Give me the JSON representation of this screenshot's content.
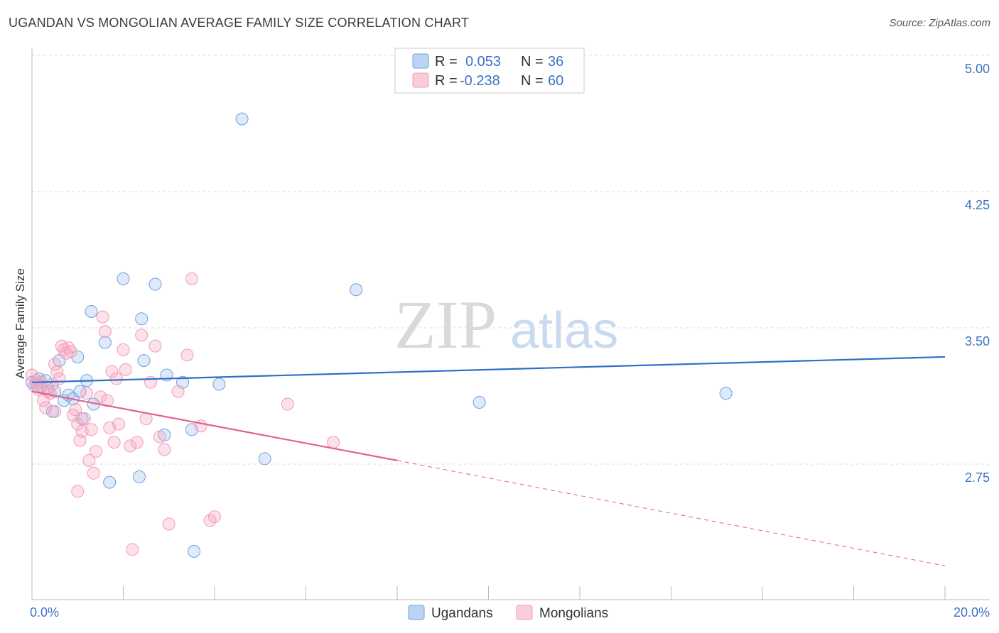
{
  "header": {
    "title": "UGANDAN VS MONGOLIAN AVERAGE FAMILY SIZE CORRELATION CHART",
    "source": "Source: ZipAtlas.com"
  },
  "watermark": {
    "zip": "ZIP",
    "atlas": "atlas"
  },
  "chart_data": {
    "type": "scatter",
    "title": "UGANDAN VS MONGOLIAN AVERAGE FAMILY SIZE CORRELATION CHART",
    "ylabel": "Average Family Size",
    "xlabel": "",
    "xlim": [
      0,
      20
    ],
    "ylim": [
      2.0,
      5.1
    ],
    "y_ticks": [
      5.0,
      4.25,
      3.5,
      2.75
    ],
    "y_tick_labels": [
      "5.00",
      "4.25",
      "3.50",
      "2.75"
    ],
    "x_tick_labels": {
      "min": "0.0%",
      "max": "20.0%"
    },
    "grid": true,
    "legend": {
      "position": "top-center",
      "entries": [
        {
          "r_label": "R =",
          "r_value": "0.053",
          "n_label": "N =",
          "n_value": "36"
        },
        {
          "r_label": "R =",
          "r_value": "-0.238",
          "n_label": "N =",
          "n_value": "60"
        }
      ]
    },
    "series": [
      {
        "name": "Ugandans",
        "color": "#6fa0e0",
        "line_color": "#2f6fc7",
        "trend": {
          "x0": 0,
          "y0": 3.2,
          "x1": 20,
          "y1": 3.34
        },
        "points": [
          [
            0.0,
            3.2
          ],
          [
            0.1,
            3.19
          ],
          [
            0.15,
            3.22
          ],
          [
            0.2,
            3.18
          ],
          [
            0.3,
            3.21
          ],
          [
            0.35,
            3.17
          ],
          [
            0.45,
            3.04
          ],
          [
            0.5,
            3.15
          ],
          [
            0.6,
            3.32
          ],
          [
            0.7,
            3.1
          ],
          [
            0.8,
            3.13
          ],
          [
            0.9,
            3.11
          ],
          [
            1.0,
            3.34
          ],
          [
            1.05,
            3.15
          ],
          [
            1.1,
            3.0
          ],
          [
            1.2,
            3.21
          ],
          [
            1.3,
            3.59
          ],
          [
            1.35,
            3.08
          ],
          [
            1.6,
            3.42
          ],
          [
            1.7,
            2.65
          ],
          [
            2.0,
            3.77
          ],
          [
            2.35,
            2.68
          ],
          [
            2.4,
            3.55
          ],
          [
            2.45,
            3.32
          ],
          [
            2.7,
            3.74
          ],
          [
            2.9,
            2.91
          ],
          [
            2.95,
            3.24
          ],
          [
            3.3,
            3.2
          ],
          [
            3.5,
            2.94
          ],
          [
            3.55,
            2.27
          ],
          [
            4.1,
            3.19
          ],
          [
            4.6,
            4.65
          ],
          [
            5.1,
            2.78
          ],
          [
            7.1,
            3.71
          ],
          [
            9.8,
            3.09
          ],
          [
            15.2,
            3.14
          ]
        ]
      },
      {
        "name": "Mongolians",
        "color": "#f29bb8",
        "line_color": "#e0628e",
        "trend": {
          "x0": 0,
          "y0": 3.15,
          "x1": 8.0,
          "y1": 2.77
        },
        "trend_dashed": {
          "x0": 8.0,
          "y0": 2.77,
          "x1": 20,
          "y1": 2.19
        },
        "points": [
          [
            0.0,
            3.24
          ],
          [
            0.05,
            3.18
          ],
          [
            0.1,
            3.21
          ],
          [
            0.15,
            3.16
          ],
          [
            0.2,
            3.2
          ],
          [
            0.25,
            3.1
          ],
          [
            0.3,
            3.06
          ],
          [
            0.35,
            3.15
          ],
          [
            0.4,
            3.14
          ],
          [
            0.45,
            3.19
          ],
          [
            0.5,
            3.04
          ],
          [
            0.55,
            3.26
          ],
          [
            0.6,
            3.22
          ],
          [
            0.65,
            3.4
          ],
          [
            0.7,
            3.38
          ],
          [
            0.75,
            3.36
          ],
          [
            0.8,
            3.39
          ],
          [
            0.85,
            3.37
          ],
          [
            0.9,
            3.02
          ],
          [
            0.95,
            3.05
          ],
          [
            1.0,
            2.97
          ],
          [
            1.05,
            2.88
          ],
          [
            1.1,
            2.93
          ],
          [
            1.15,
            3.0
          ],
          [
            1.2,
            3.14
          ],
          [
            1.25,
            2.77
          ],
          [
            1.3,
            2.94
          ],
          [
            1.35,
            2.7
          ],
          [
            1.4,
            2.82
          ],
          [
            1.5,
            3.12
          ],
          [
            1.55,
            3.56
          ],
          [
            1.6,
            3.48
          ],
          [
            1.65,
            3.1
          ],
          [
            1.7,
            2.95
          ],
          [
            1.75,
            3.26
          ],
          [
            1.8,
            2.87
          ],
          [
            1.85,
            3.22
          ],
          [
            1.9,
            2.97
          ],
          [
            2.0,
            3.38
          ],
          [
            2.05,
            3.27
          ],
          [
            2.15,
            2.85
          ],
          [
            2.2,
            2.28
          ],
          [
            2.3,
            2.87
          ],
          [
            2.4,
            3.46
          ],
          [
            2.5,
            3.0
          ],
          [
            2.6,
            3.2
          ],
          [
            2.7,
            3.4
          ],
          [
            2.9,
            2.83
          ],
          [
            3.0,
            2.42
          ],
          [
            3.2,
            3.15
          ],
          [
            3.4,
            3.35
          ],
          [
            3.5,
            3.77
          ],
          [
            3.7,
            2.96
          ],
          [
            3.9,
            2.44
          ],
          [
            4.0,
            2.46
          ],
          [
            5.6,
            3.08
          ],
          [
            6.6,
            2.87
          ],
          [
            0.5,
            3.3
          ],
          [
            1.0,
            2.6
          ],
          [
            2.8,
            2.9
          ]
        ]
      }
    ]
  }
}
